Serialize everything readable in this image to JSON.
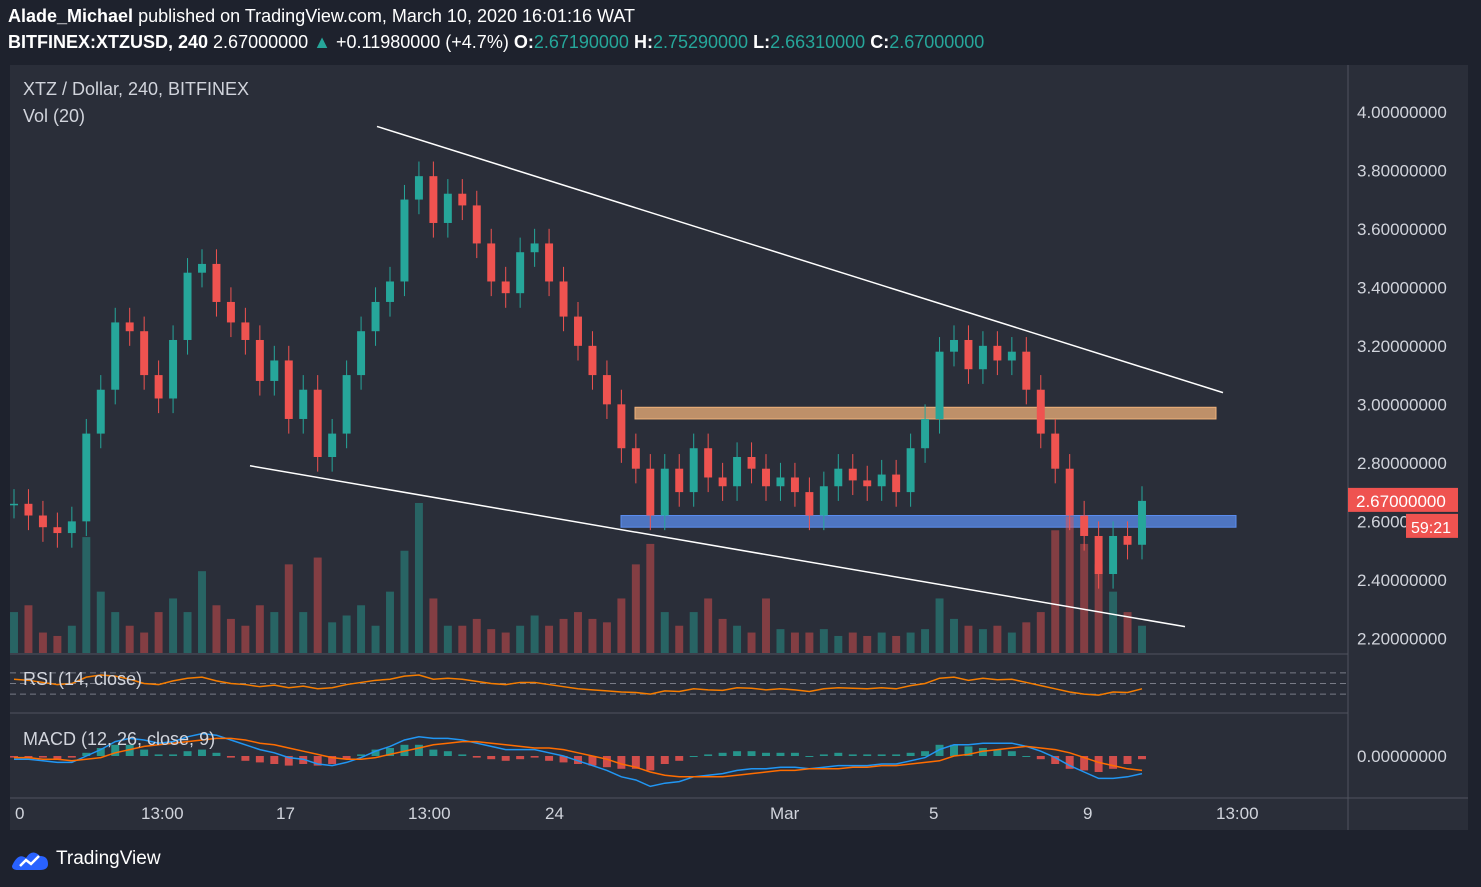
{
  "header": {
    "author": "Alade_Michael",
    "published": "published on TradingView.com, March 10, 2020 16:01:16 WAT",
    "symbol": "BITFINEX:XTZUSD, 240",
    "last": "2.67000000",
    "change": "+0.11980000 (+4.7%)",
    "o_label": "O:",
    "o_value": "2.67190000",
    "h_label": "H:",
    "h_value": "2.75290000",
    "l_label": "L:",
    "l_value": "2.66310000",
    "c_label": "C:",
    "c_value": "2.67000000"
  },
  "legend": {
    "pair": "XTZ / Dollar, 240, BITFINEX",
    "volume": "Vol (20)",
    "rsi": "RSI (14, close)",
    "macd": "MACD (12, 26, close, 9)"
  },
  "footer": {
    "brand": "TradingView"
  },
  "colors": {
    "up": "#26a69a",
    "down": "#ef5350",
    "background": "#2a2e39",
    "resistance_zone": "#f0b27a",
    "support_zone": "#5b8def",
    "rsi_line": "#f57c00",
    "macd_line": "#2196f3",
    "signal_line": "#ff6d00"
  },
  "chart_data": {
    "type": "candlestick",
    "price_axis": {
      "ticks": [
        "4.00000000",
        "3.80000000",
        "3.60000000",
        "3.40000000",
        "3.20000000",
        "3.00000000",
        "2.80000000",
        "2.60000000",
        "2.40000000",
        "2.20000000"
      ],
      "ylim": [
        2.15,
        4.16
      ]
    },
    "time_axis": {
      "ticks": [
        "0",
        "13:00",
        "17",
        "13:00",
        "24",
        "Mar",
        "5",
        "9",
        "13:00"
      ]
    },
    "last_price": {
      "label": "2.67000000",
      "countdown": "59:21",
      "value": 2.67
    },
    "closes": [
      2.66,
      2.62,
      2.58,
      2.56,
      2.6,
      2.9,
      3.05,
      3.28,
      3.25,
      3.1,
      3.02,
      3.22,
      3.45,
      3.48,
      3.35,
      3.28,
      3.22,
      3.08,
      3.15,
      2.95,
      3.05,
      2.82,
      2.9,
      3.1,
      3.25,
      3.35,
      3.42,
      3.7,
      3.78,
      3.62,
      3.72,
      3.68,
      3.55,
      3.42,
      3.38,
      3.52,
      3.55,
      3.42,
      3.3,
      3.2,
      3.1,
      3.0,
      2.85,
      2.78,
      2.62,
      2.78,
      2.7,
      2.85,
      2.75,
      2.72,
      2.82,
      2.78,
      2.72,
      2.75,
      2.7,
      2.62,
      2.72,
      2.78,
      2.74,
      2.72,
      2.76,
      2.7,
      2.85,
      2.95,
      3.18,
      3.22,
      3.12,
      3.2,
      3.15,
      3.18,
      3.05,
      2.9,
      2.78,
      2.62,
      2.55,
      2.42,
      2.55,
      2.52,
      2.67
    ],
    "volumes": [
      60,
      70,
      30,
      25,
      40,
      170,
      90,
      60,
      40,
      30,
      60,
      80,
      60,
      120,
      70,
      50,
      40,
      70,
      60,
      130,
      60,
      140,
      45,
      55,
      70,
      40,
      90,
      150,
      220,
      80,
      40,
      40,
      50,
      35,
      30,
      40,
      55,
      40,
      50,
      60,
      50,
      45,
      80,
      130,
      160,
      60,
      40,
      60,
      80,
      50,
      40,
      30,
      80,
      35,
      30,
      30,
      35,
      25,
      30,
      25,
      30,
      25,
      30,
      35,
      80,
      50,
      40,
      35,
      40,
      30,
      45,
      60,
      180,
      200,
      160,
      130,
      90,
      60,
      40
    ],
    "rsi_range": [
      0,
      100
    ],
    "rsi": [
      58,
      56,
      52,
      48,
      50,
      62,
      66,
      64,
      58,
      50,
      48,
      55,
      60,
      62,
      55,
      50,
      48,
      44,
      47,
      42,
      45,
      40,
      42,
      48,
      52,
      56,
      58,
      64,
      66,
      58,
      60,
      58,
      54,
      50,
      48,
      52,
      52,
      48,
      44,
      40,
      38,
      36,
      34,
      33,
      30,
      36,
      35,
      40,
      38,
      37,
      42,
      41,
      38,
      40,
      38,
      35,
      40,
      42,
      41,
      40,
      42,
      40,
      46,
      50,
      60,
      62,
      56,
      60,
      57,
      58,
      52,
      46,
      40,
      34,
      30,
      28,
      34,
      33,
      40
    ],
    "macd": [
      -0.02,
      -0.02,
      -0.03,
      -0.04,
      -0.04,
      0.0,
      0.04,
      0.09,
      0.11,
      0.1,
      0.08,
      0.09,
      0.12,
      0.14,
      0.13,
      0.1,
      0.07,
      0.04,
      0.02,
      -0.01,
      -0.02,
      -0.05,
      -0.06,
      -0.04,
      -0.01,
      0.03,
      0.06,
      0.1,
      0.12,
      0.11,
      0.11,
      0.1,
      0.08,
      0.06,
      0.04,
      0.04,
      0.04,
      0.02,
      0.0,
      -0.03,
      -0.06,
      -0.09,
      -0.13,
      -0.15,
      -0.19,
      -0.17,
      -0.16,
      -0.13,
      -0.12,
      -0.11,
      -0.09,
      -0.08,
      -0.08,
      -0.07,
      -0.07,
      -0.08,
      -0.07,
      -0.06,
      -0.06,
      -0.06,
      -0.05,
      -0.05,
      -0.03,
      -0.01,
      0.04,
      0.07,
      0.07,
      0.08,
      0.08,
      0.08,
      0.06,
      0.03,
      -0.01,
      -0.06,
      -0.1,
      -0.14,
      -0.14,
      -0.13,
      -0.11
    ],
    "signal": [
      -0.01,
      -0.01,
      -0.02,
      -0.02,
      -0.03,
      -0.02,
      -0.01,
      0.02,
      0.04,
      0.06,
      0.07,
      0.08,
      0.09,
      0.1,
      0.11,
      0.11,
      0.1,
      0.08,
      0.07,
      0.05,
      0.03,
      0.01,
      -0.01,
      -0.02,
      -0.02,
      -0.01,
      0.01,
      0.03,
      0.05,
      0.07,
      0.08,
      0.09,
      0.09,
      0.08,
      0.07,
      0.06,
      0.05,
      0.05,
      0.04,
      0.02,
      0.0,
      -0.02,
      -0.05,
      -0.07,
      -0.1,
      -0.12,
      -0.13,
      -0.13,
      -0.13,
      -0.13,
      -0.12,
      -0.11,
      -0.1,
      -0.09,
      -0.09,
      -0.08,
      -0.08,
      -0.08,
      -0.07,
      -0.07,
      -0.06,
      -0.06,
      -0.05,
      -0.04,
      -0.03,
      0.0,
      0.01,
      0.03,
      0.04,
      0.05,
      0.06,
      0.05,
      0.04,
      0.02,
      -0.01,
      -0.04,
      -0.06,
      -0.08,
      -0.09
    ],
    "macd_axis_label": "0.00000000",
    "zones": [
      {
        "name": "resistance",
        "from": 2.95,
        "to": 2.99
      },
      {
        "name": "support",
        "from": 2.58,
        "to": 2.62
      }
    ],
    "trendlines": [
      {
        "name": "upper",
        "from": 3.95,
        "to": 3.04
      },
      {
        "name": "lower",
        "from": 2.79,
        "to": 2.24
      }
    ]
  }
}
